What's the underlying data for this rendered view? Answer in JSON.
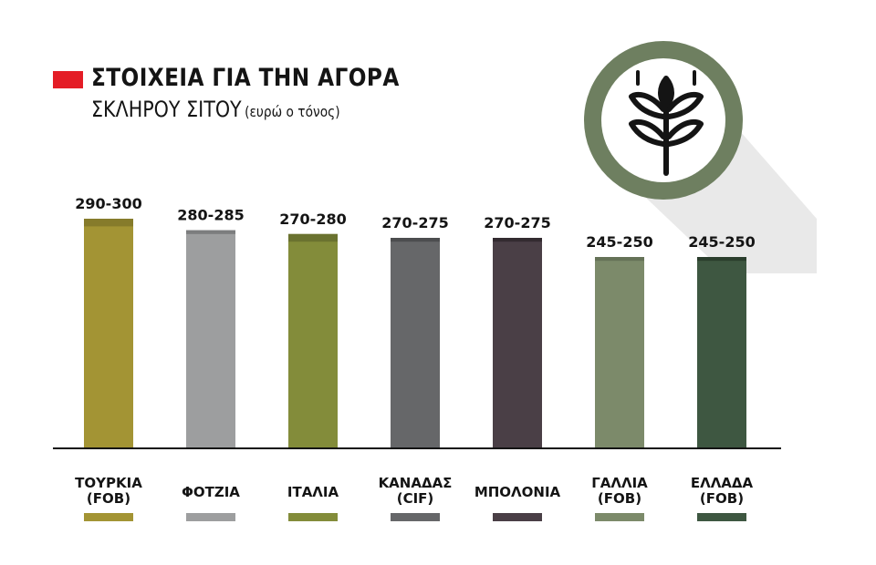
{
  "title": {
    "line1": "ΣΤΟΙΧΕΙΑ ΓΙΑ ΤΗΝ ΑΓΟΡΑ",
    "line2": "ΣΚΛΗΡΟΥ ΣΙΤΟΥ",
    "unit": "(ευρώ ο τόνος)",
    "marker_color": "#e41d26"
  },
  "icon": {
    "name": "wheat-icon",
    "circle_color": "#6e7f60"
  },
  "chart_data": {
    "type": "bar",
    "title": "ΣΤΟΙΧΕΙΑ ΓΙΑ ΤΗΝ ΑΓΟΡΑ ΣΚΛΗΡΟΥ ΣΙΤΟΥ",
    "ylabel": "ευρώ ο τόνος",
    "ylim": [
      0,
      300
    ],
    "grid": false,
    "categories": [
      "ΤΟΥΡΚΙΑ (FOB)",
      "ΦΟΤΖΙΑ",
      "ΙΤΑΛΙΑ",
      "ΚΑΝΑΔΑΣ (CIF)",
      "ΜΠΟΛΟΝΙΑ",
      "ΓΑΛΛΙΑ (FOB)",
      "ΕΛΛΑΔΑ (FOB)"
    ],
    "bars": [
      {
        "label": [
          "ΤΟΥΡΚΙΑ",
          "(FOB)"
        ],
        "low": 290,
        "high": 300,
        "value_label": "290-300",
        "color": "#a39434",
        "cap_color": "#867b2b"
      },
      {
        "label": [
          "ΦΟΤΖΙΑ"
        ],
        "low": 280,
        "high": 285,
        "value_label": "280-285",
        "color": "#9d9e9f",
        "cap_color": "#7c7d7e"
      },
      {
        "label": [
          "ΙΤΑΛΙΑ"
        ],
        "low": 270,
        "high": 280,
        "value_label": "270-280",
        "color": "#838c3a",
        "cap_color": "#6a722f"
      },
      {
        "label": [
          "ΚΑΝΑΔΑΣ",
          "(CIF)"
        ],
        "low": 270,
        "high": 275,
        "value_label": "270-275",
        "color": "#666769",
        "cap_color": "#4c4d4f"
      },
      {
        "label": [
          "ΜΠΟΛΟΝΙΑ"
        ],
        "low": 270,
        "high": 275,
        "value_label": "270-275",
        "color": "#4a3f46",
        "cap_color": "#332b30"
      },
      {
        "label": [
          "ΓΑΛΛΙΑ",
          "(FOB)"
        ],
        "low": 245,
        "high": 250,
        "value_label": "245-250",
        "color": "#7c8a6a",
        "cap_color": "#657257"
      },
      {
        "label": [
          "ΕΛΛΑΔΑ",
          "(FOB)"
        ],
        "low": 245,
        "high": 250,
        "value_label": "245-250",
        "color": "#3e5741",
        "cap_color": "#2a3d2c"
      }
    ]
  }
}
